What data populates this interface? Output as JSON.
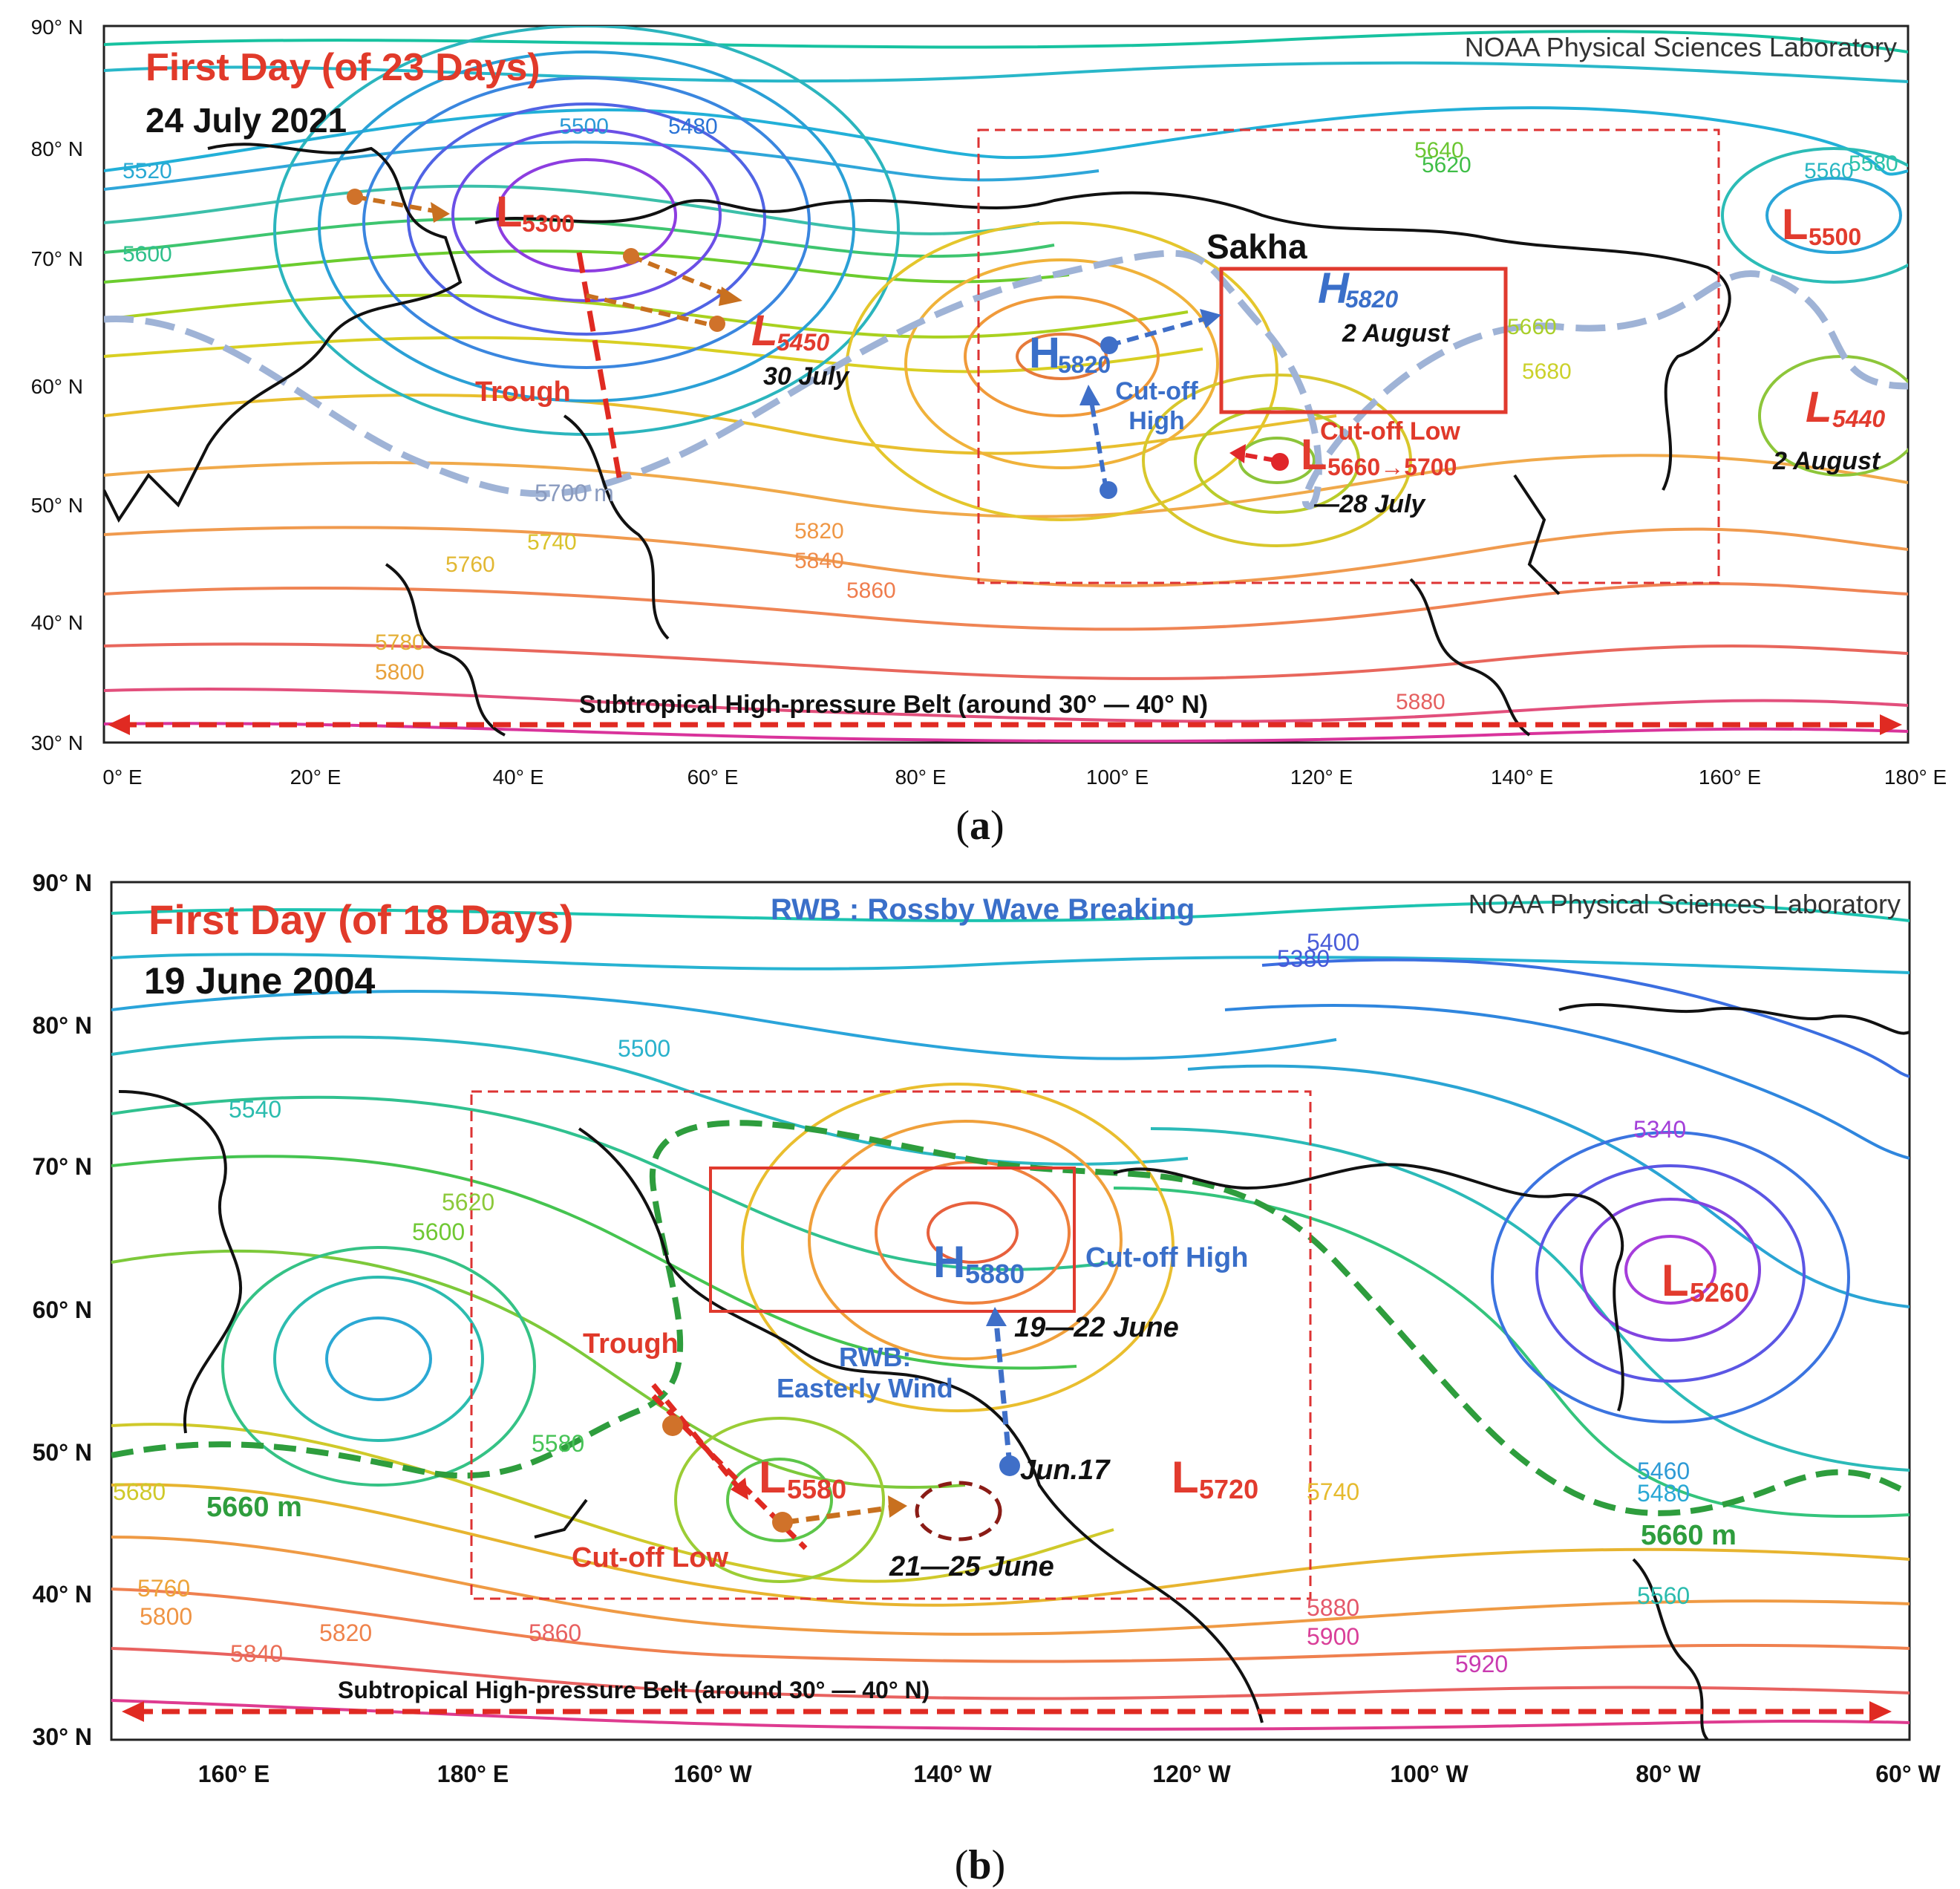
{
  "panel_a": {
    "source": "NOAA Physical Sciences Laboratory",
    "title": "First Day (of 23 Days)",
    "date": "24 July 2021",
    "caption_letter": "a",
    "lat_labels": [
      "90° N",
      "80° N",
      "70° N",
      "60° N",
      "50° N",
      "40° N",
      "30° N"
    ],
    "lon_labels": [
      "0° E",
      "20° E",
      "40° E",
      "60° E",
      "80° E",
      "100° E",
      "120° E",
      "140° E",
      "160° E",
      "180° E"
    ],
    "region_label": "Sakha",
    "belt_label": "Subtropical High-pressure Belt (around 30° — 40° N)",
    "trough_label": "Trough",
    "ridge_line_label": "5700 m",
    "cutoff_high_label": [
      "Cut-off",
      "High"
    ],
    "cutoff_low_label": "Cut-off Low",
    "systems": [
      {
        "type": "L",
        "value": "5300",
        "color": "#e23b2e"
      },
      {
        "type": "L",
        "value": "5450",
        "color": "#e23b2e",
        "note": "30 July"
      },
      {
        "type": "H",
        "value": "5820",
        "color": "#3a6fc9"
      },
      {
        "type": "H",
        "value": "5820",
        "color": "#3a6fc9",
        "note": "2 August"
      },
      {
        "type": "L",
        "value": "5660→5700",
        "color": "#e23b2e",
        "note": "—28 July"
      },
      {
        "type": "L",
        "value": "5500",
        "color": "#e23b2e"
      },
      {
        "type": "L",
        "value": "5440",
        "color": "#e23b2e",
        "note": "2 August"
      }
    ],
    "contour_labels": [
      "5480",
      "5500",
      "5520",
      "5560",
      "5580",
      "5600",
      "5620",
      "5640",
      "5660",
      "5680",
      "5740",
      "5760",
      "5780",
      "5800",
      "5820",
      "5840",
      "5860",
      "5880"
    ]
  },
  "panel_b": {
    "source": "NOAA Physical Sciences Laboratory",
    "title": "First Day (of 18 Days)",
    "date": "19 June 2004",
    "caption_letter": "b",
    "rwb_note": "RWB : Rossby Wave Breaking",
    "lat_labels": [
      "90° N",
      "80° N",
      "70° N",
      "60° N",
      "50° N",
      "40° N",
      "30° N"
    ],
    "lon_labels": [
      "160° E",
      "180° E",
      "160° W",
      "140° W",
      "120° W",
      "100° W",
      "80° W",
      "60° W"
    ],
    "belt_label": "Subtropical High-pressure Belt (around 30° — 40° N)",
    "trough_label": "Trough",
    "cutoff_high_label": "Cut-off High",
    "cutoff_low_label": "Cut-off Low",
    "rwb_label": [
      "RWB:",
      "Easterly Wind"
    ],
    "ridge_line_label": "5660 m",
    "dates": {
      "high": "19—22 June",
      "start": "Jun.17",
      "low": "21—25 June"
    },
    "systems": [
      {
        "type": "H",
        "value": "5880",
        "color": "#3a6fc9"
      },
      {
        "type": "L",
        "value": "5580",
        "color": "#e23b2e"
      },
      {
        "type": "L",
        "value": "5720",
        "color": "#e23b2e"
      },
      {
        "type": "L",
        "value": "5260",
        "color": "#e23b2e"
      }
    ],
    "contour_labels": [
      "5340",
      "5380",
      "5400",
      "5460",
      "5480",
      "5500",
      "5540",
      "5560",
      "5580",
      "5600",
      "5620",
      "5680",
      "5740",
      "5760",
      "5800",
      "5820",
      "5840",
      "5860",
      "5880",
      "5900",
      "5920"
    ]
  }
}
